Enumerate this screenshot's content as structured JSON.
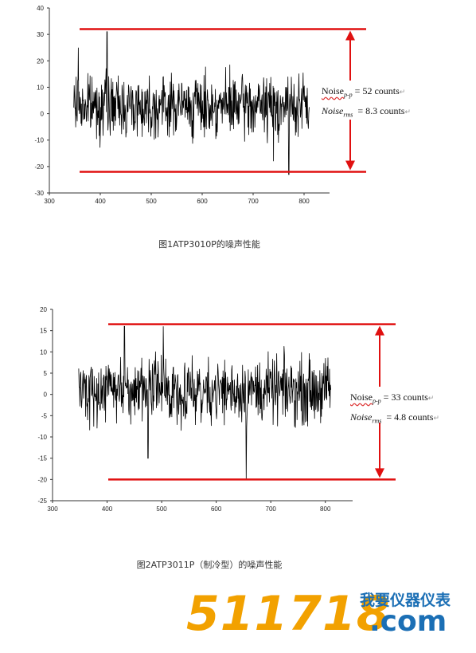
{
  "chart_data": [
    {
      "type": "line",
      "xlim": [
        300,
        850
      ],
      "ylim": [
        -30,
        40
      ],
      "xticks": [
        300,
        400,
        500,
        600,
        700,
        800
      ],
      "yticks": [
        -30,
        -20,
        -10,
        0,
        10,
        20,
        30,
        40
      ],
      "x_range": [
        348,
        810
      ],
      "mean": 3,
      "spikes": [
        {
          "x": 413,
          "y": 31
        },
        {
          "x": 770,
          "y": -23
        },
        {
          "x": 357,
          "y": 25
        },
        {
          "x": 740,
          "y": -18
        }
      ],
      "upper_line": 32,
      "lower_line": -22,
      "noise_pp_label": "Noise",
      "noise_pp_sub": "p-p",
      "noise_pp_value": "= 52 counts",
      "noise_rms_label": "Noise",
      "noise_rms_sub": "rms",
      "noise_rms_value": "= 8.3 counts"
    },
    {
      "type": "line",
      "xlim": [
        300,
        850
      ],
      "ylim": [
        -25,
        20
      ],
      "xticks": [
        300,
        400,
        500,
        600,
        700,
        800
      ],
      "yticks": [
        -25,
        -20,
        -15,
        -10,
        -5,
        0,
        5,
        10,
        15,
        20
      ],
      "x_range": [
        348,
        810
      ],
      "mean": 1,
      "spikes": [
        {
          "x": 432,
          "y": 16
        },
        {
          "x": 503,
          "y": 16
        },
        {
          "x": 655,
          "y": -20
        },
        {
          "x": 475,
          "y": -15
        }
      ],
      "upper_line": 16.5,
      "lower_line": -20,
      "noise_pp_label": "Noise",
      "noise_pp_sub": "p-p",
      "noise_pp_value": "= 33 counts",
      "noise_rms_label": "Noise",
      "noise_rms_sub": "rms",
      "noise_rms_value": "= 4.8 counts"
    }
  ],
  "captions": {
    "fig1": "图1ATP3010P的噪声性能",
    "fig2": "图2ATP3011P（制冷型）的噪声性能"
  },
  "watermark": {
    "digits": "511718",
    "cn": "我要仪器仪表",
    "com": ".com"
  },
  "colors": {
    "accent": "#e01010",
    "trace": "#000000",
    "axis": "#333333",
    "watermark_orange": "#f2a100",
    "watermark_blue": "#1b6fb5"
  }
}
